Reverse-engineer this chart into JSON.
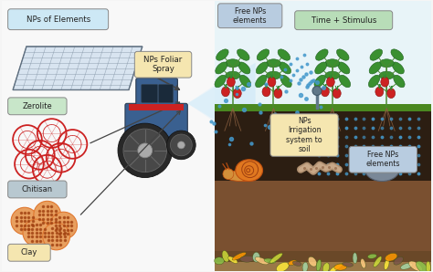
{
  "bg_color": "#f5f5f5",
  "labels": {
    "np_elements": "NPs of Elements",
    "zerolite": "Zerolite",
    "chitisan": "Chitisan",
    "clay": "Clay",
    "foliar_spray": "NPs Foliar\nSpray",
    "free_nps_top": "Free NPs\nelements",
    "time_stimulus": "Time + Stimulus",
    "irrigation": "NPs\nIrrigation\nsystem to\nsoil",
    "free_nps_bottom": "Free NPs\nelements"
  },
  "label_box_colors": {
    "np_elements": "#cde8f5",
    "zerolite": "#c8e6c9",
    "chitisan": "#b8c8d0",
    "clay": "#f5e6b0",
    "foliar_spray": "#f5e6b0",
    "free_nps_top": "#b8cce0",
    "time_stimulus": "#b8ddb8",
    "irrigation": "#f5e6b0",
    "free_nps_bottom": "#b8cce0"
  },
  "soil_dark": "#2c1a0e",
  "soil_mid": "#5c3a20",
  "soil_light": "#8c6840",
  "soil_surface": "#5a8030",
  "grid_color": "#8899aa",
  "zerolite_color": "#cc2222",
  "clay_color": "#e07830",
  "clay_fill": "#e8a060",
  "arrow_color": "#444444",
  "spray_beam": "#d0eaf8",
  "dot_color": "#4499cc",
  "tractor_blue": "#3a6090",
  "tractor_dark": "#2a3a50",
  "tractor_red": "#cc2222",
  "tractor_grey": "#606878",
  "wheel_dark": "#282828",
  "wheel_mid": "#484848",
  "wheel_light": "#888888",
  "root_color": "#8B6040",
  "plant_stem": "#4a8a30",
  "plant_leaf": "#3a9030",
  "plant_leaf_dark": "#206020",
  "berry_red": "#cc2222",
  "berry_dark": "#881111",
  "berry_green": "#338833",
  "snail_orange": "#e07820",
  "snail_dark": "#c05010",
  "worm_color": "#c8a888",
  "rock_color": "#7a8898",
  "rock_dark": "#556070"
}
